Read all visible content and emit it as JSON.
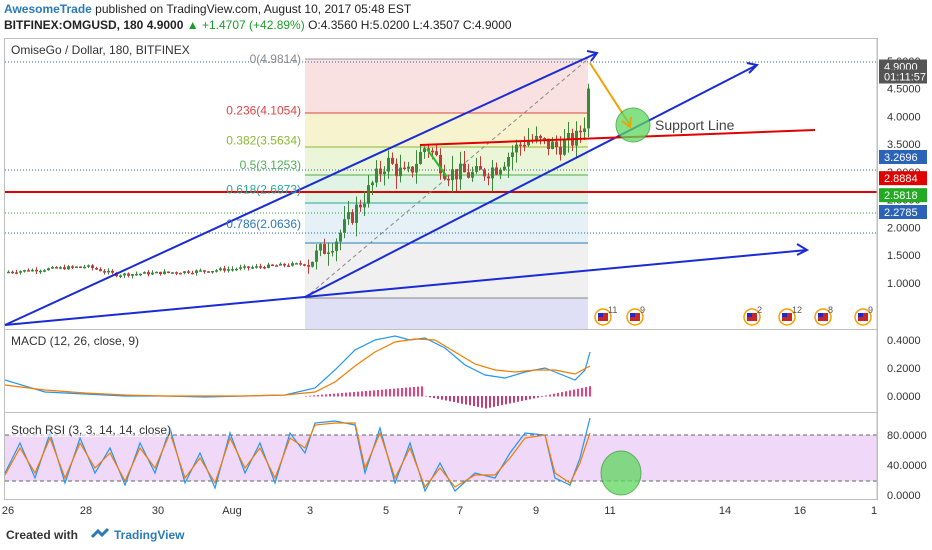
{
  "header": {
    "author": "AwesomeTrade",
    "published_text": "published on TradingView.com, August 10, 2017 05:48 EST",
    "symbol_line": "BITFINEX:OMGUSD, 180  4.9000",
    "change": "+1.4707 (+42.89%)",
    "ohlc": "O:4.3560 H:5.0200 L:4.3507 C:4.9000"
  },
  "main_pane": {
    "title": "OmiseGo / Dollar, 180, BITFINEX",
    "fib_levels": [
      {
        "label": "0(4.9814)",
        "value": 4.9814
      },
      {
        "label": "0.236(4.1054)",
        "value": 4.1054
      },
      {
        "label": "0.382(3.5634)",
        "value": 3.5634
      },
      {
        "label": "0.5(3.1253)",
        "value": 3.1253
      },
      {
        "label": "0.618(2.6873)",
        "value": 2.6873
      },
      {
        "label": "0.786(2.0636)",
        "value": 2.0636
      }
    ],
    "support_label": "Support Line",
    "price_axis": [
      "5.0000",
      "4.5000",
      "4.0000",
      "3.5000",
      "3.0000",
      "2.5000",
      "2.0000",
      "1.5000",
      "1.0000"
    ],
    "price_badges": [
      {
        "text": "4.9000",
        "value": 4.9,
        "color": "#555555"
      },
      {
        "text": "01:11:57",
        "value": 4.72,
        "color": "#555555"
      },
      {
        "text": "3.2696",
        "value": 3.2696,
        "color": "#2a63b8"
      },
      {
        "text": "2.8884",
        "value": 2.8884,
        "color": "#e00000"
      },
      {
        "text": "2.5818",
        "value": 2.5818,
        "color": "#22aa22"
      },
      {
        "text": "2.2785",
        "value": 2.2785,
        "color": "#2a63b8"
      }
    ],
    "event_counts": [
      "11",
      "9",
      "2",
      "12",
      "8",
      "9"
    ]
  },
  "macd_pane": {
    "title": "MACD (12, 26, close, 9)",
    "axis": [
      "0.4000",
      "0.2000",
      "0.0000"
    ]
  },
  "rsi_pane": {
    "title": "Stoch RSI (3, 3, 14, 14, close)",
    "axis": [
      "80.0000",
      "40.0000",
      "0.0000"
    ]
  },
  "time_axis": [
    "26",
    "28",
    "30",
    "Aug",
    "3",
    "5",
    "7",
    "9",
    "11",
    "14",
    "16",
    "1"
  ],
  "footer": {
    "created": "Created with",
    "brand": "TradingView"
  },
  "colors": {
    "up": "#3b8a3b",
    "down": "#c23b3b",
    "channel": "#1a2bd6",
    "resistance": "#e00000",
    "macd": "#2196f3",
    "signal": "#f57c00"
  },
  "chart_data": {
    "type": "candlestick",
    "title": "OmiseGo / Dollar, 180, BITFINEX",
    "ylim": [
      0.8,
      5.2
    ],
    "series": [
      {
        "name": "OMGUSD",
        "x": [
          "26",
          "28",
          "30",
          "Aug",
          "3",
          "5",
          "7",
          "9",
          "10"
        ],
        "values": [
          1.2,
          1.35,
          1.2,
          1.25,
          1.35,
          3.2,
          2.9,
          3.6,
          4.9
        ]
      }
    ]
  }
}
